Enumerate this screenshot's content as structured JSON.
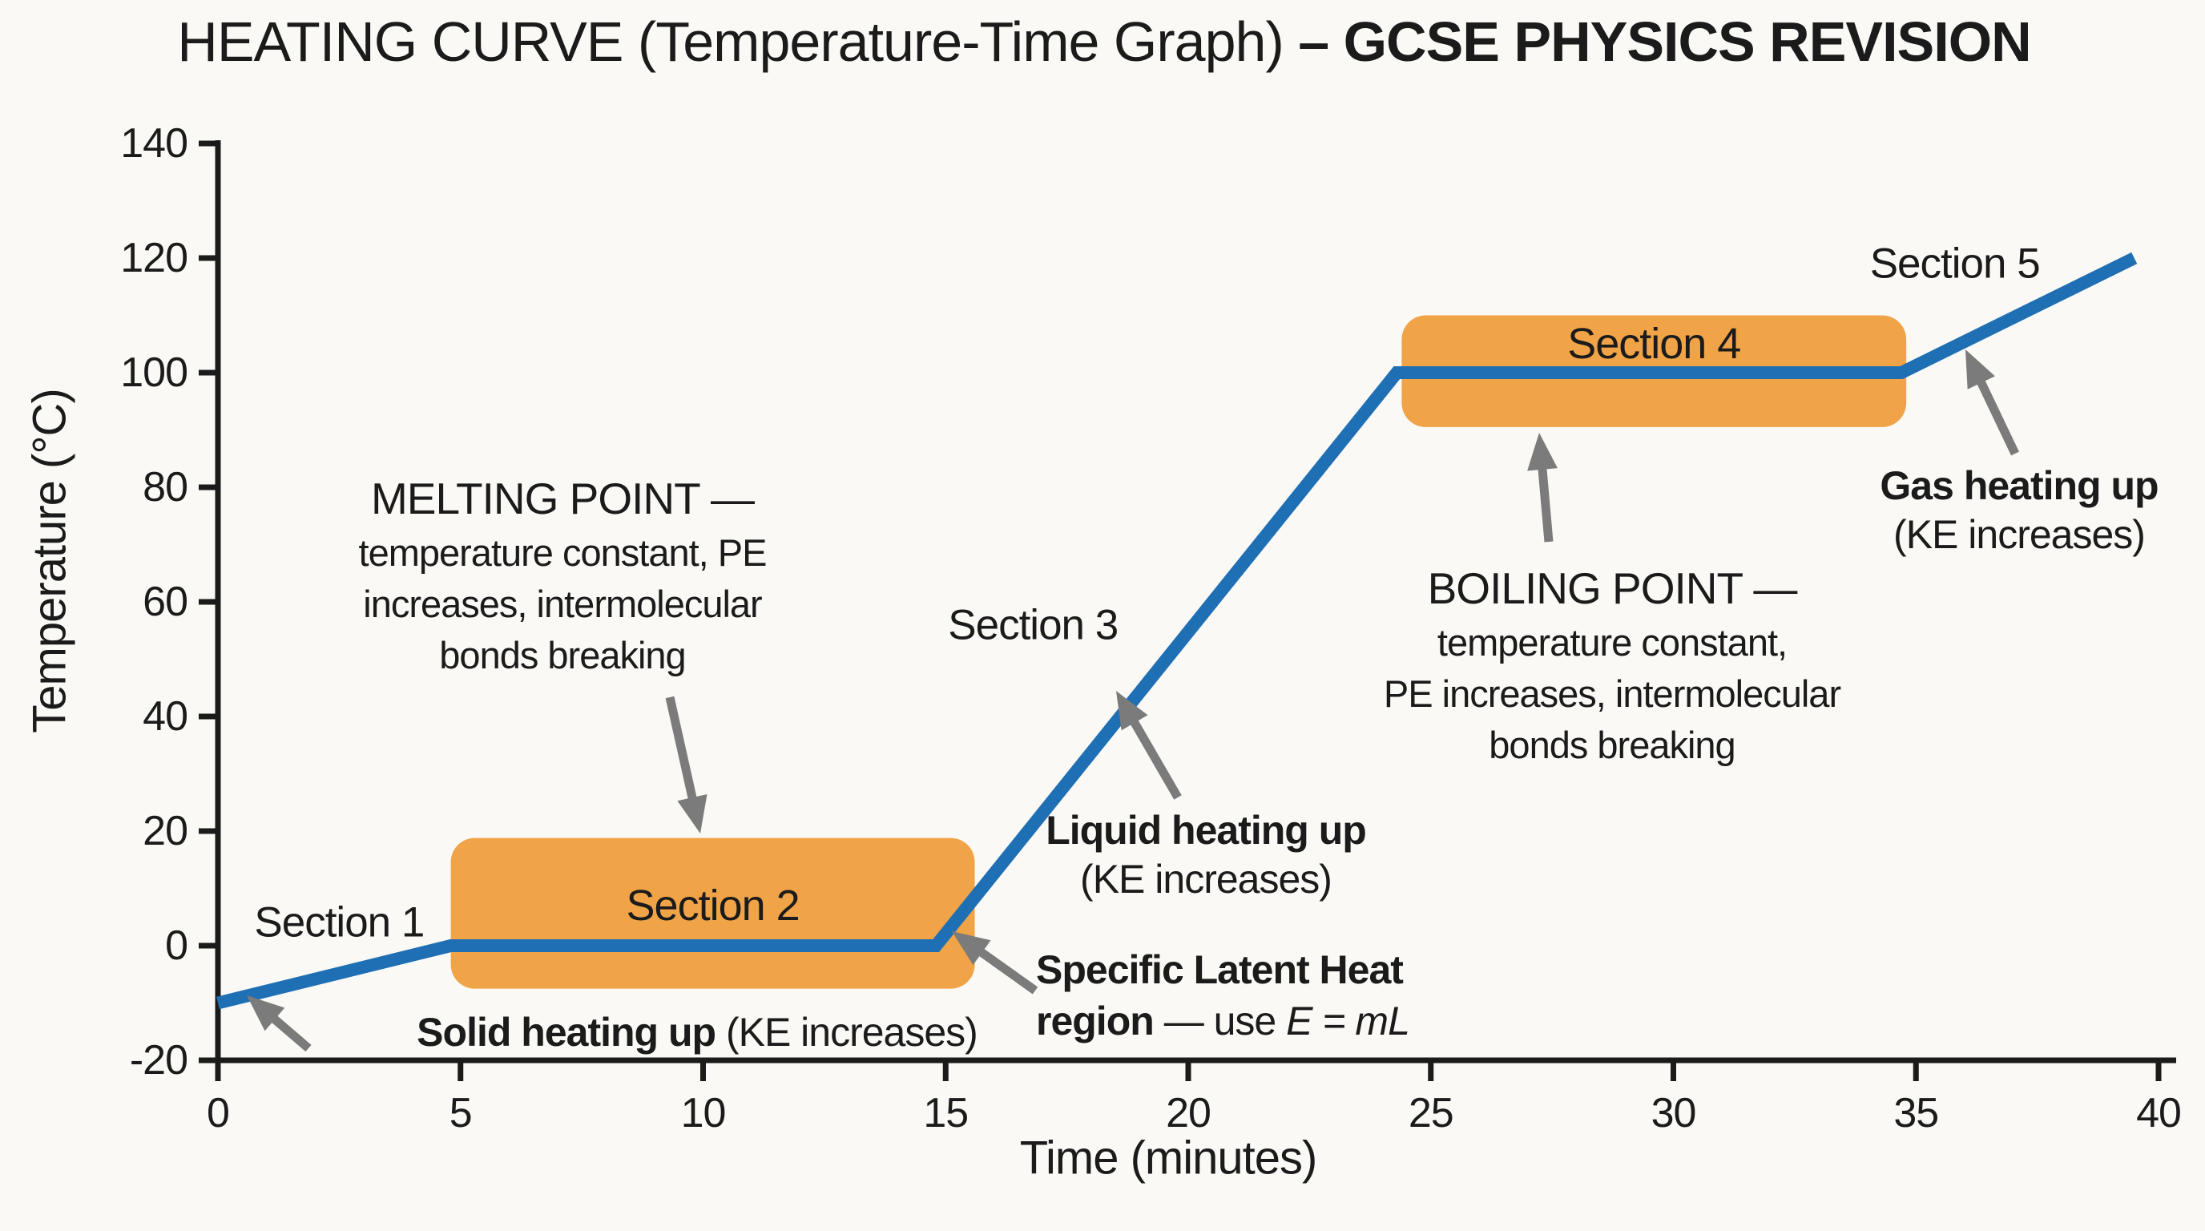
{
  "title_display": {
    "regular": "HEATING CURVE (Temperature-Time Graph) ",
    "bold": "– GCSE PHYSICS REVISION"
  },
  "colors": {
    "curve_blue": "#1F6FB4",
    "region_orange": "#F0A347",
    "arrow_gray": "#7B7B7B",
    "axis_black": "#1B1B1B",
    "text_black": "#1B1B1B",
    "background": "#FAF9F6"
  },
  "chart_data": {
    "type": "line",
    "title": "HEATING CURVE (Temperature-Time Graph) – GCSE PHYSICS REVISION",
    "xlabel": "Time (minutes)",
    "ylabel": "Temperature (°C)",
    "xlim": [
      0,
      40
    ],
    "ylim": [
      -20,
      140
    ],
    "x_ticks": [
      0,
      5,
      10,
      15,
      20,
      25,
      30,
      35,
      40
    ],
    "y_ticks": [
      140,
      120,
      100,
      80,
      60,
      40,
      20,
      0,
      -20
    ],
    "grid": false,
    "legend": false,
    "series": [
      {
        "name": "heating curve",
        "color": "#1F6FB4",
        "x": [
          0,
          4.8,
          14.8,
          24.3,
          34.7,
          39.5
        ],
        "y": [
          -10,
          0,
          0,
          100,
          100,
          120
        ]
      }
    ],
    "highlight_regions": [
      {
        "label": "Section 2",
        "time_range": [
          4.8,
          15.6
        ],
        "temp_range": [
          -7.5,
          18.8
        ],
        "label_temp": 7,
        "color": "#F0A347"
      },
      {
        "label": "Section 4",
        "time_range": [
          24.4,
          34.8
        ],
        "temp_range": [
          90.5,
          110
        ],
        "label_temp": 105,
        "color": "#F0A347"
      }
    ],
    "section_labels": [
      {
        "text": "Section 1",
        "time": 2.5,
        "temp": 4
      },
      {
        "text": "Section 3",
        "time": 16.8,
        "temp": 56
      },
      {
        "text": "Section 5",
        "time": 35.8,
        "temp": 119
      }
    ],
    "annotations": {
      "melting": {
        "lines": [
          "MELTING POINT —",
          "temperature constant, PE",
          "increases, intermolecular",
          "bonds breaking"
        ]
      },
      "boiling": {
        "lines": [
          "BOILING POINT —",
          "temperature constant,",
          "PE increases, intermolecular",
          "bonds breaking"
        ]
      },
      "solid_heating": {
        "bold": "Solid heating up",
        "regular": " (KE increases)"
      },
      "liquid_heating": {
        "bold": "Liquid heating up",
        "line2": "(KE increases)"
      },
      "gas_heating": {
        "bold": "Gas heating up",
        "line2": "(KE increases)"
      },
      "latent_heat": {
        "line1": "Specific Latent Heat",
        "line2_bold": "region",
        "line2_regular": " — use ",
        "line2_formula": "E = mL"
      }
    }
  }
}
